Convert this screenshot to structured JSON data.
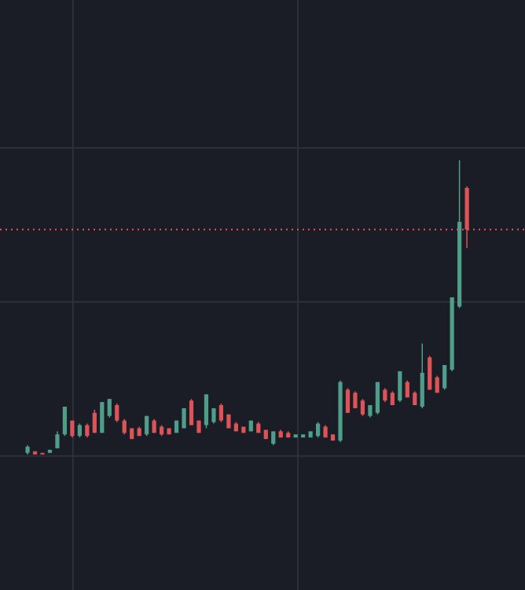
{
  "chart_data": {
    "type": "candlestick",
    "x": [
      0,
      1,
      2,
      3,
      4,
      5,
      6,
      7,
      8,
      9,
      10,
      11,
      12,
      13,
      14,
      15,
      16,
      17,
      18,
      19,
      20,
      21,
      22,
      23,
      24,
      25,
      26,
      27,
      28,
      29,
      30,
      31,
      32,
      33,
      34,
      35,
      36,
      37,
      38,
      39,
      40,
      41,
      42,
      43,
      44,
      45,
      46,
      47,
      48,
      49,
      50,
      51,
      52,
      53,
      54,
      55,
      56,
      57,
      58,
      59
    ],
    "open": [
      1.02,
      1.03,
      1.02,
      1.02,
      1.05,
      1.14,
      1.23,
      1.13,
      1.2,
      1.28,
      1.15,
      1.26,
      1.33,
      1.23,
      1.18,
      1.18,
      1.14,
      1.23,
      1.19,
      1.18,
      1.15,
      1.18,
      1.36,
      1.23,
      1.2,
      1.22,
      1.33,
      1.27,
      1.21,
      1.19,
      1.16,
      1.21,
      1.17,
      1.08,
      1.16,
      1.15,
      1.12,
      1.12,
      1.12,
      1.13,
      1.19,
      1.14,
      1.1,
      1.43,
      1.41,
      1.36,
      1.26,
      1.28,
      1.43,
      1.41,
      1.36,
      1.48,
      1.41,
      1.32,
      1.64,
      1.51,
      1.44,
      1.56,
      1.97,
      2.74
    ],
    "high": [
      1.07,
      1.03,
      1.02,
      1.04,
      1.16,
      1.32,
      1.23,
      1.21,
      1.21,
      1.3,
      1.35,
      1.37,
      1.34,
      1.24,
      1.18,
      1.19,
      1.26,
      1.24,
      1.2,
      1.18,
      1.23,
      1.31,
      1.37,
      1.23,
      1.4,
      1.31,
      1.34,
      1.27,
      1.22,
      1.19,
      1.23,
      1.22,
      1.17,
      1.16,
      1.17,
      1.16,
      1.14,
      1.14,
      1.16,
      1.22,
      1.2,
      1.14,
      1.49,
      1.44,
      1.42,
      1.37,
      1.33,
      1.48,
      1.44,
      1.42,
      1.55,
      1.49,
      1.42,
      1.73,
      1.65,
      1.52,
      1.59,
      2.03,
      2.92,
      2.75
    ],
    "low": [
      1.01,
      1.01,
      1.01,
      1.02,
      1.05,
      1.13,
      1.12,
      1.12,
      1.12,
      1.15,
      1.15,
      1.25,
      1.22,
      1.14,
      1.11,
      1.13,
      1.13,
      1.15,
      1.13,
      1.14,
      1.15,
      1.18,
      1.2,
      1.15,
      1.18,
      1.21,
      1.22,
      1.18,
      1.16,
      1.15,
      1.16,
      1.15,
      1.11,
      1.07,
      1.12,
      1.12,
      1.12,
      1.12,
      1.12,
      1.12,
      1.12,
      1.1,
      1.09,
      1.28,
      1.31,
      1.26,
      1.25,
      1.27,
      1.35,
      1.33,
      1.35,
      1.38,
      1.33,
      1.31,
      1.43,
      1.41,
      1.43,
      1.55,
      1.96,
      2.35
    ],
    "close": [
      1.06,
      1.01,
      1.01,
      1.04,
      1.14,
      1.32,
      1.13,
      1.2,
      1.13,
      1.15,
      1.35,
      1.37,
      1.23,
      1.15,
      1.11,
      1.13,
      1.26,
      1.15,
      1.14,
      1.14,
      1.23,
      1.31,
      1.2,
      1.15,
      1.4,
      1.31,
      1.23,
      1.18,
      1.16,
      1.15,
      1.23,
      1.15,
      1.11,
      1.16,
      1.12,
      1.12,
      1.14,
      1.14,
      1.16,
      1.21,
      1.12,
      1.1,
      1.48,
      1.28,
      1.31,
      1.27,
      1.33,
      1.48,
      1.36,
      1.33,
      1.55,
      1.38,
      1.33,
      1.54,
      1.43,
      1.41,
      1.59,
      2.03,
      2.52,
      2.47
    ],
    "up_color": "#4e9e8a",
    "down_color": "#dd5458",
    "xlim": [
      -3.7,
      66.8
    ],
    "xticks": [
      6.1,
      36.3
    ],
    "ylim": [
      0.13,
      3.96
    ],
    "yticks": [
      1,
      2,
      3
    ],
    "grid": true,
    "price_line": {
      "value": 2.47,
      "color": "#e0585c"
    }
  }
}
